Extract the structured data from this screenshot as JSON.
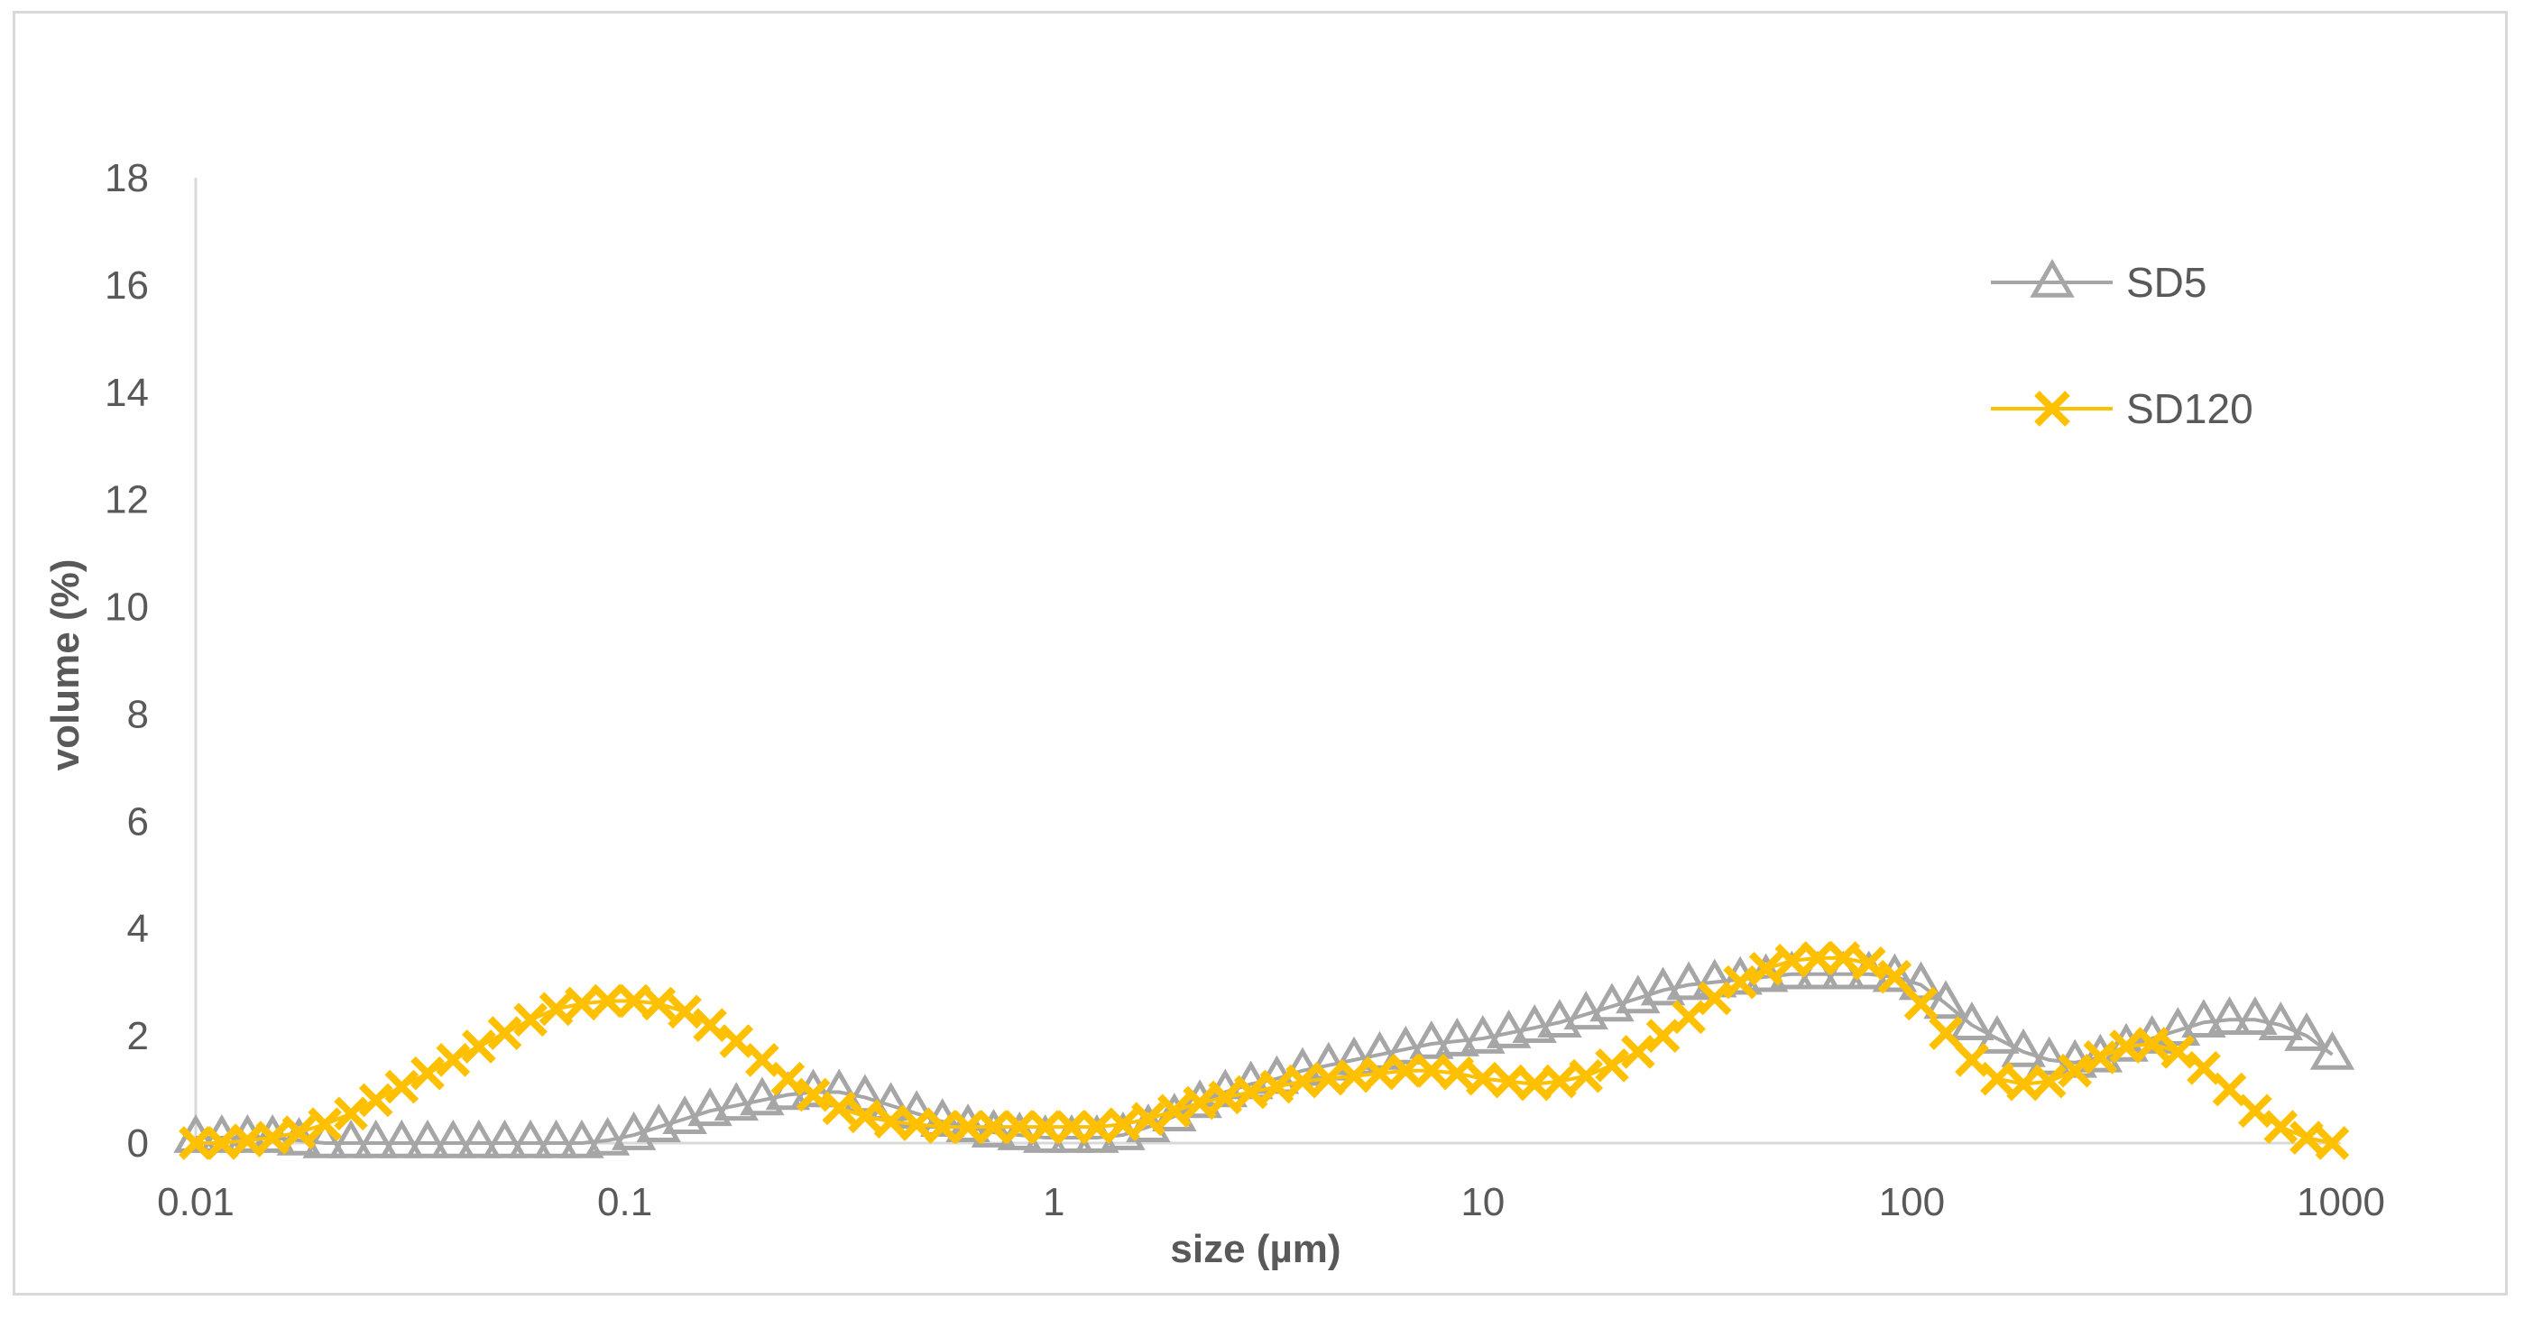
{
  "chart_data": {
    "type": "line",
    "title": "",
    "xlabel": "size (µm)",
    "ylabel": "volume (%)",
    "x_scale": "log",
    "xlim": [
      0.01,
      1000
    ],
    "ylim": [
      0,
      18
    ],
    "x_ticks": [
      0.01,
      0.1,
      1,
      10,
      100,
      1000
    ],
    "x_tick_labels": [
      "0.01",
      "0.1",
      "1",
      "10",
      "100",
      "1000"
    ],
    "y_ticks": [
      0,
      2,
      4,
      6,
      8,
      10,
      12,
      14,
      16,
      18
    ],
    "y_tick_labels": [
      "0",
      "2",
      "4",
      "6",
      "8",
      "10",
      "12",
      "14",
      "16",
      "18"
    ],
    "grid": false,
    "legend_position": "top-right",
    "series": [
      {
        "name": "SD5",
        "color": "#a6a6a6",
        "marker": "triangle",
        "x": [
          0.01,
          0.0115,
          0.0132,
          0.0151,
          0.0174,
          0.02,
          0.023,
          0.0263,
          0.0302,
          0.0347,
          0.0398,
          0.0457,
          0.0525,
          0.0603,
          0.0692,
          0.0794,
          0.0912,
          0.105,
          0.12,
          0.138,
          0.158,
          0.182,
          0.209,
          0.24,
          0.275,
          0.316,
          0.363,
          0.417,
          0.479,
          0.55,
          0.631,
          0.724,
          0.832,
          0.955,
          1.1,
          1.26,
          1.45,
          1.66,
          1.91,
          2.19,
          2.51,
          2.88,
          3.31,
          3.8,
          4.37,
          5.01,
          5.75,
          6.61,
          7.59,
          8.71,
          10,
          11.5,
          13.2,
          15.1,
          17.4,
          20,
          23,
          26.3,
          30.2,
          34.7,
          39.8,
          45.7,
          52.5,
          60.3,
          69.2,
          79.4,
          91.2,
          105,
          120,
          138,
          158,
          182,
          209,
          240,
          275,
          316,
          363,
          417,
          479,
          550,
          631,
          724,
          832,
          955
        ],
        "y": [
          0.1,
          0.1,
          0.1,
          0.1,
          0.05,
          0,
          0,
          0,
          0,
          0,
          0,
          0,
          0,
          0,
          0,
          0,
          0.05,
          0.15,
          0.3,
          0.45,
          0.6,
          0.7,
          0.8,
          0.9,
          0.95,
          0.95,
          0.85,
          0.7,
          0.55,
          0.4,
          0.3,
          0.2,
          0.15,
          0.1,
          0.1,
          0.1,
          0.15,
          0.3,
          0.5,
          0.75,
          0.95,
          1.1,
          1.2,
          1.35,
          1.45,
          1.55,
          1.65,
          1.75,
          1.85,
          1.9,
          1.95,
          2.05,
          2.15,
          2.25,
          2.4,
          2.55,
          2.7,
          2.85,
          2.95,
          3.0,
          3.05,
          3.1,
          3.15,
          3.15,
          3.15,
          3.15,
          3.1,
          2.95,
          2.6,
          2.2,
          1.95,
          1.7,
          1.55,
          1.5,
          1.6,
          1.8,
          1.95,
          2.1,
          2.25,
          2.3,
          2.3,
          2.2,
          2.0,
          1.65
        ]
      },
      {
        "name": "SD120",
        "color": "#ffc000",
        "marker": "x",
        "x": [
          0.01,
          0.0115,
          0.0132,
          0.0151,
          0.0174,
          0.02,
          0.023,
          0.0263,
          0.0302,
          0.0347,
          0.0398,
          0.0457,
          0.0525,
          0.0603,
          0.0692,
          0.0794,
          0.0912,
          0.105,
          0.12,
          0.138,
          0.158,
          0.182,
          0.209,
          0.24,
          0.275,
          0.316,
          0.363,
          0.417,
          0.479,
          0.55,
          0.631,
          0.724,
          0.832,
          0.955,
          1.1,
          1.26,
          1.45,
          1.66,
          1.91,
          2.19,
          2.51,
          2.88,
          3.31,
          3.8,
          4.37,
          5.01,
          5.75,
          6.61,
          7.59,
          8.71,
          10,
          11.5,
          13.2,
          15.1,
          17.4,
          20,
          23,
          26.3,
          30.2,
          34.7,
          39.8,
          45.7,
          52.5,
          60.3,
          69.2,
          79.4,
          91.2,
          105,
          120,
          138,
          158,
          182,
          209,
          240,
          275,
          316,
          363,
          417,
          479,
          550,
          631,
          724,
          832,
          955
        ],
        "y": [
          0,
          0,
          0.05,
          0.1,
          0.2,
          0.35,
          0.55,
          0.8,
          1.05,
          1.3,
          1.55,
          1.8,
          2.05,
          2.3,
          2.5,
          2.6,
          2.65,
          2.65,
          2.6,
          2.45,
          2.2,
          1.9,
          1.55,
          1.2,
          0.9,
          0.65,
          0.5,
          0.4,
          0.35,
          0.3,
          0.3,
          0.3,
          0.3,
          0.3,
          0.3,
          0.3,
          0.35,
          0.45,
          0.6,
          0.75,
          0.85,
          0.95,
          1.05,
          1.15,
          1.2,
          1.25,
          1.3,
          1.35,
          1.35,
          1.3,
          1.2,
          1.15,
          1.1,
          1.15,
          1.25,
          1.45,
          1.7,
          2.0,
          2.35,
          2.7,
          3.0,
          3.25,
          3.4,
          3.45,
          3.45,
          3.35,
          3.1,
          2.6,
          2.05,
          1.55,
          1.2,
          1.1,
          1.15,
          1.35,
          1.6,
          1.8,
          1.85,
          1.7,
          1.4,
          1.0,
          0.6,
          0.3,
          0.1,
          0
        ]
      }
    ]
  }
}
